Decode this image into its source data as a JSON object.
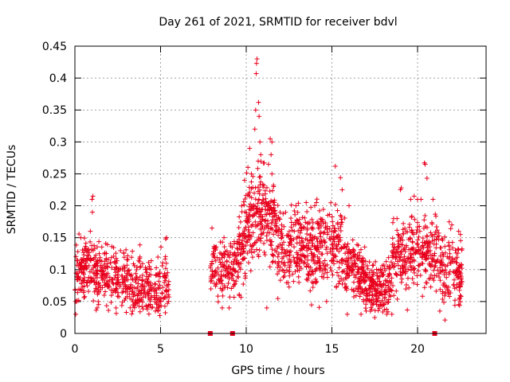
{
  "chart_data": {
    "type": "scatter",
    "title": "Day 261 of 2021, SRMTID for receiver bdvl",
    "xlabel": "GPS time / hours",
    "ylabel": "SRMTID / TECUs",
    "xlim": [
      0,
      24
    ],
    "ylim": [
      0,
      0.45
    ],
    "x_ticks": [
      0,
      5,
      10,
      15,
      20
    ],
    "x_tick_labels": [
      "0",
      "5",
      "10",
      "15",
      "20"
    ],
    "y_ticks": [
      0,
      0.05,
      0.1,
      0.15,
      0.2,
      0.25,
      0.3,
      0.35,
      0.4,
      0.45
    ],
    "y_tick_labels": [
      "0",
      "0.05",
      "0.1",
      "0.15",
      "0.2",
      "0.25",
      "0.3",
      "0.35",
      "0.4",
      "0.45"
    ],
    "grid": true,
    "color": "#e8001c",
    "marker": "plus",
    "series": [
      {
        "name": "SRMTID",
        "segments": [
          {
            "t_start": 0.0,
            "t_end": 5.5,
            "n": 560,
            "baseline": [
              [
                0,
                0.095
              ],
              [
                1,
                0.1
              ],
              [
                2,
                0.09
              ],
              [
                3,
                0.08
              ],
              [
                4,
                0.075
              ],
              [
                5,
                0.07
              ],
              [
                5.5,
                0.08
              ]
            ],
            "spread": 0.03
          },
          {
            "t_start": 7.9,
            "t_end": 9.5,
            "n": 150,
            "baseline": [
              [
                7.9,
                0.1
              ],
              [
                8.5,
                0.1
              ],
              [
                9.5,
                0.11
              ]
            ],
            "spread": 0.03
          },
          {
            "t_start": 9.5,
            "t_end": 12.0,
            "n": 330,
            "baseline": [
              [
                9.5,
                0.12
              ],
              [
                10.3,
                0.18
              ],
              [
                10.8,
                0.2
              ],
              [
                11.5,
                0.17
              ],
              [
                12,
                0.14
              ]
            ],
            "spread": 0.045
          },
          {
            "t_start": 12.0,
            "t_end": 15.8,
            "n": 420,
            "baseline": [
              [
                12,
                0.13
              ],
              [
                13,
                0.14
              ],
              [
                14,
                0.13
              ],
              [
                15,
                0.14
              ],
              [
                15.8,
                0.12
              ]
            ],
            "spread": 0.04
          },
          {
            "t_start": 15.8,
            "t_end": 18.5,
            "n": 330,
            "baseline": [
              [
                15.8,
                0.11
              ],
              [
                16.5,
                0.1
              ],
              [
                17.3,
                0.07
              ],
              [
                18,
                0.065
              ],
              [
                18.5,
                0.09
              ]
            ],
            "spread": 0.03
          },
          {
            "t_start": 18.5,
            "t_end": 22.6,
            "n": 420,
            "baseline": [
              [
                18.5,
                0.11
              ],
              [
                19.5,
                0.12
              ],
              [
                20.5,
                0.13
              ],
              [
                21.5,
                0.11
              ],
              [
                22.6,
                0.09
              ]
            ],
            "spread": 0.035
          }
        ],
        "points": [
          [
            0.05,
            0.03
          ],
          [
            0.1,
            0.05
          ],
          [
            0.35,
            0.15
          ],
          [
            0.9,
            0.16
          ],
          [
            1.0,
            0.21
          ],
          [
            1.05,
            0.215
          ],
          [
            1.02,
            0.19
          ],
          [
            1.3,
            0.04
          ],
          [
            2.4,
            0.04
          ],
          [
            3.0,
            0.033
          ],
          [
            4.7,
            0.035
          ],
          [
            4.95,
            0.028
          ],
          [
            5.3,
            0.148
          ],
          [
            5.35,
            0.15
          ],
          [
            8.0,
            0.165
          ],
          [
            8.6,
            0.04
          ],
          [
            9.0,
            0.04
          ],
          [
            9.9,
            0.24
          ],
          [
            10.1,
            0.26
          ],
          [
            10.2,
            0.29
          ],
          [
            10.3,
            0.25
          ],
          [
            10.5,
            0.32
          ],
          [
            10.55,
            0.35
          ],
          [
            10.6,
            0.423
          ],
          [
            10.63,
            0.43
          ],
          [
            10.58,
            0.407
          ],
          [
            10.72,
            0.362
          ],
          [
            10.75,
            0.34
          ],
          [
            10.8,
            0.3
          ],
          [
            10.85,
            0.28
          ],
          [
            10.7,
            0.27
          ],
          [
            11.4,
            0.305
          ],
          [
            11.5,
            0.3
          ],
          [
            11.45,
            0.28
          ],
          [
            11.3,
            0.265
          ],
          [
            11.5,
            0.25
          ],
          [
            11.6,
            0.23
          ],
          [
            11.2,
            0.04
          ],
          [
            12.9,
            0.2
          ],
          [
            13.5,
            0.205
          ],
          [
            14.0,
            0.2
          ],
          [
            14.1,
            0.205
          ],
          [
            15.2,
            0.262
          ],
          [
            15.5,
            0.244
          ],
          [
            15.6,
            0.225
          ],
          [
            15.9,
            0.03
          ],
          [
            16.0,
            0.2
          ],
          [
            16.7,
            0.03
          ],
          [
            17.0,
            0.035
          ],
          [
            17.5,
            0.025
          ],
          [
            18.2,
            0.03
          ],
          [
            18.5,
            0.03
          ],
          [
            18.6,
            0.18
          ],
          [
            18.8,
            0.18
          ],
          [
            19.0,
            0.225
          ],
          [
            19.05,
            0.228
          ],
          [
            19.6,
            0.21
          ],
          [
            19.8,
            0.215
          ],
          [
            20.0,
            0.21
          ],
          [
            20.2,
            0.21
          ],
          [
            20.4,
            0.267
          ],
          [
            20.45,
            0.265
          ],
          [
            20.55,
            0.243
          ],
          [
            20.9,
            0.21
          ],
          [
            21.3,
            0.035
          ],
          [
            21.6,
            0.021
          ],
          [
            22.0,
            0.17
          ],
          [
            22.4,
            0.16
          ],
          [
            22.5,
            0.155
          ]
        ]
      },
      {
        "name": "zero markers",
        "marker": "square",
        "points": [
          [
            7.9,
            0
          ],
          [
            9.2,
            0
          ],
          [
            21.0,
            0
          ]
        ]
      }
    ]
  }
}
